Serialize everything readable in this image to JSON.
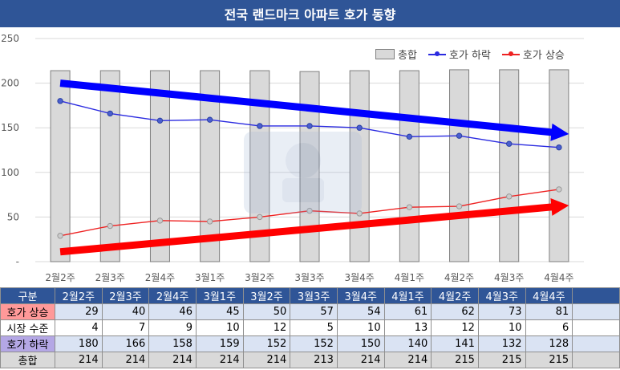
{
  "title": "전국 랜드마크 아파트 호가 동향",
  "chart_data": {
    "type": "bar+line",
    "categories": [
      "2월2주",
      "2월3주",
      "2월4주",
      "3월1주",
      "3월2주",
      "3월3주",
      "3월4주",
      "4월1주",
      "4월2주",
      "4월3주",
      "4월4주"
    ],
    "ylim": [
      0,
      250
    ],
    "yticks": [
      "-",
      "50",
      "100",
      "150",
      "200",
      "250"
    ],
    "grid": true,
    "legend": "top-right",
    "series": [
      {
        "name": "총합",
        "type": "bar",
        "color": "#d9d9d9",
        "values": [
          214,
          214,
          214,
          214,
          214,
          213,
          214,
          214,
          215,
          215,
          215
        ]
      },
      {
        "name": "호가 하락",
        "type": "line",
        "color": "#2a2ae0",
        "values": [
          180,
          166,
          158,
          159,
          152,
          152,
          150,
          140,
          141,
          132,
          128
        ]
      },
      {
        "name": "호가 상승",
        "type": "line",
        "color": "#ee2222",
        "values": [
          29,
          40,
          46,
          45,
          50,
          57,
          54,
          61,
          62,
          73,
          81
        ]
      }
    ],
    "trend_arrows": [
      {
        "color": "#0000ff",
        "from": [
          0,
          200
        ],
        "to": [
          10.2,
          143
        ]
      },
      {
        "color": "#ff0000",
        "from": [
          0,
          11
        ],
        "to": [
          10.2,
          63
        ]
      }
    ]
  },
  "table": {
    "header": [
      "구분",
      "2월2주",
      "2월3주",
      "2월4주",
      "3월1주",
      "3월2주",
      "3월3주",
      "3월4주",
      "4월1주",
      "4월2주",
      "4월3주",
      "4월4주"
    ],
    "rows": [
      {
        "label": "호가 상승",
        "values": [
          "29",
          "40",
          "46",
          "45",
          "50",
          "57",
          "54",
          "61",
          "62",
          "73",
          "81"
        ]
      },
      {
        "label": "시장 수준",
        "values": [
          "4",
          "7",
          "9",
          "10",
          "12",
          "5",
          "10",
          "13",
          "12",
          "10",
          "6"
        ]
      },
      {
        "label": "호가 하락",
        "values": [
          "180",
          "166",
          "158",
          "159",
          "152",
          "152",
          "150",
          "140",
          "141",
          "132",
          "128"
        ]
      },
      {
        "label": "총합",
        "values": [
          "214",
          "214",
          "214",
          "214",
          "214",
          "213",
          "214",
          "214",
          "215",
          "215",
          "215"
        ]
      }
    ]
  }
}
